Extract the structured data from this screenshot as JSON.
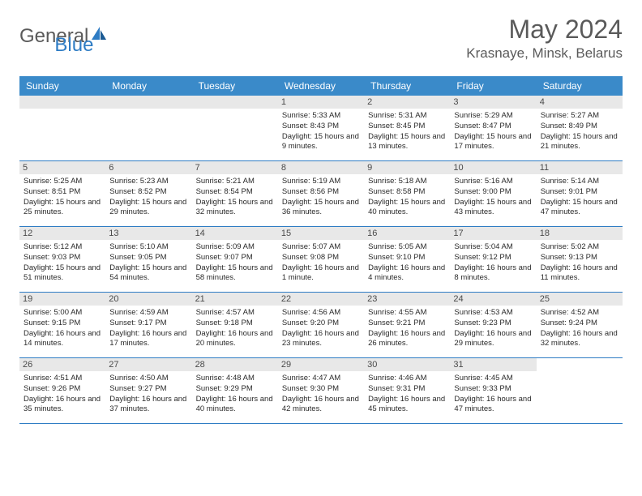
{
  "logo": {
    "text1": "General",
    "text2": "Blue"
  },
  "title": "May 2024",
  "location": "Krasnaye, Minsk, Belarus",
  "colors": {
    "header_bg": "#3a8ac9",
    "border": "#2e7cc4",
    "day_bg": "#e8e8e8",
    "text": "#5a5a5a"
  },
  "weekdays": [
    "Sunday",
    "Monday",
    "Tuesday",
    "Wednesday",
    "Thursday",
    "Friday",
    "Saturday"
  ],
  "weeks": [
    [
      null,
      null,
      null,
      {
        "day": "1",
        "sunrise": "5:33 AM",
        "sunset": "8:43 PM",
        "daylight": "15 hours and 9 minutes."
      },
      {
        "day": "2",
        "sunrise": "5:31 AM",
        "sunset": "8:45 PM",
        "daylight": "15 hours and 13 minutes."
      },
      {
        "day": "3",
        "sunrise": "5:29 AM",
        "sunset": "8:47 PM",
        "daylight": "15 hours and 17 minutes."
      },
      {
        "day": "4",
        "sunrise": "5:27 AM",
        "sunset": "8:49 PM",
        "daylight": "15 hours and 21 minutes."
      }
    ],
    [
      {
        "day": "5",
        "sunrise": "5:25 AM",
        "sunset": "8:51 PM",
        "daylight": "15 hours and 25 minutes."
      },
      {
        "day": "6",
        "sunrise": "5:23 AM",
        "sunset": "8:52 PM",
        "daylight": "15 hours and 29 minutes."
      },
      {
        "day": "7",
        "sunrise": "5:21 AM",
        "sunset": "8:54 PM",
        "daylight": "15 hours and 32 minutes."
      },
      {
        "day": "8",
        "sunrise": "5:19 AM",
        "sunset": "8:56 PM",
        "daylight": "15 hours and 36 minutes."
      },
      {
        "day": "9",
        "sunrise": "5:18 AM",
        "sunset": "8:58 PM",
        "daylight": "15 hours and 40 minutes."
      },
      {
        "day": "10",
        "sunrise": "5:16 AM",
        "sunset": "9:00 PM",
        "daylight": "15 hours and 43 minutes."
      },
      {
        "day": "11",
        "sunrise": "5:14 AM",
        "sunset": "9:01 PM",
        "daylight": "15 hours and 47 minutes."
      }
    ],
    [
      {
        "day": "12",
        "sunrise": "5:12 AM",
        "sunset": "9:03 PM",
        "daylight": "15 hours and 51 minutes."
      },
      {
        "day": "13",
        "sunrise": "5:10 AM",
        "sunset": "9:05 PM",
        "daylight": "15 hours and 54 minutes."
      },
      {
        "day": "14",
        "sunrise": "5:09 AM",
        "sunset": "9:07 PM",
        "daylight": "15 hours and 58 minutes."
      },
      {
        "day": "15",
        "sunrise": "5:07 AM",
        "sunset": "9:08 PM",
        "daylight": "16 hours and 1 minute."
      },
      {
        "day": "16",
        "sunrise": "5:05 AM",
        "sunset": "9:10 PM",
        "daylight": "16 hours and 4 minutes."
      },
      {
        "day": "17",
        "sunrise": "5:04 AM",
        "sunset": "9:12 PM",
        "daylight": "16 hours and 8 minutes."
      },
      {
        "day": "18",
        "sunrise": "5:02 AM",
        "sunset": "9:13 PM",
        "daylight": "16 hours and 11 minutes."
      }
    ],
    [
      {
        "day": "19",
        "sunrise": "5:00 AM",
        "sunset": "9:15 PM",
        "daylight": "16 hours and 14 minutes."
      },
      {
        "day": "20",
        "sunrise": "4:59 AM",
        "sunset": "9:17 PM",
        "daylight": "16 hours and 17 minutes."
      },
      {
        "day": "21",
        "sunrise": "4:57 AM",
        "sunset": "9:18 PM",
        "daylight": "16 hours and 20 minutes."
      },
      {
        "day": "22",
        "sunrise": "4:56 AM",
        "sunset": "9:20 PM",
        "daylight": "16 hours and 23 minutes."
      },
      {
        "day": "23",
        "sunrise": "4:55 AM",
        "sunset": "9:21 PM",
        "daylight": "16 hours and 26 minutes."
      },
      {
        "day": "24",
        "sunrise": "4:53 AM",
        "sunset": "9:23 PM",
        "daylight": "16 hours and 29 minutes."
      },
      {
        "day": "25",
        "sunrise": "4:52 AM",
        "sunset": "9:24 PM",
        "daylight": "16 hours and 32 minutes."
      }
    ],
    [
      {
        "day": "26",
        "sunrise": "4:51 AM",
        "sunset": "9:26 PM",
        "daylight": "16 hours and 35 minutes."
      },
      {
        "day": "27",
        "sunrise": "4:50 AM",
        "sunset": "9:27 PM",
        "daylight": "16 hours and 37 minutes."
      },
      {
        "day": "28",
        "sunrise": "4:48 AM",
        "sunset": "9:29 PM",
        "daylight": "16 hours and 40 minutes."
      },
      {
        "day": "29",
        "sunrise": "4:47 AM",
        "sunset": "9:30 PM",
        "daylight": "16 hours and 42 minutes."
      },
      {
        "day": "30",
        "sunrise": "4:46 AM",
        "sunset": "9:31 PM",
        "daylight": "16 hours and 45 minutes."
      },
      {
        "day": "31",
        "sunrise": "4:45 AM",
        "sunset": "9:33 PM",
        "daylight": "16 hours and 47 minutes."
      },
      null
    ]
  ],
  "labels": {
    "sunrise": "Sunrise:",
    "sunset": "Sunset:",
    "daylight": "Daylight:"
  }
}
